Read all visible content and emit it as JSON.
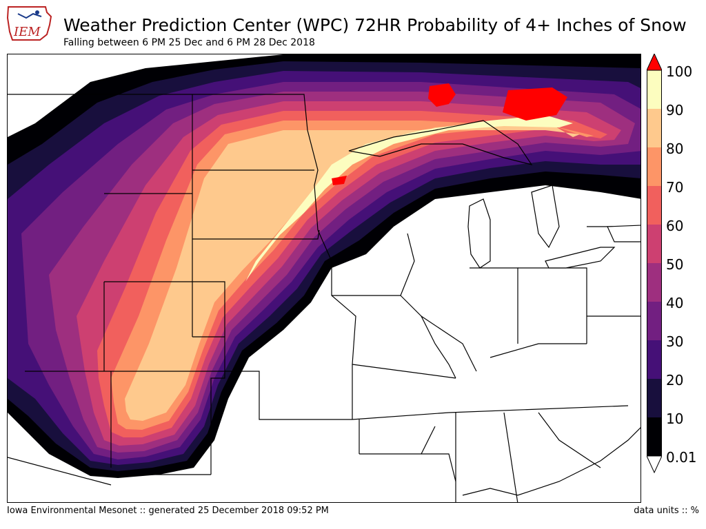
{
  "header": {
    "logo_text": "IEM",
    "title": "Weather Prediction Center (WPC) 72HR Probability of 4+ Inches of Snow",
    "subtitle": "Falling between 6 PM 25 Dec and 6 PM 28 Dec 2018"
  },
  "colorbar": {
    "levels": [
      "100",
      "90",
      "80",
      "70",
      "60",
      "50",
      "40",
      "30",
      "20",
      "10",
      "0.01"
    ],
    "colors": [
      "#fcfdbf",
      "#fec98d",
      "#fd9567",
      "#f1605d",
      "#cd4071",
      "#9e2f7f",
      "#721f81",
      "#451077",
      "#180f3d",
      "#000004"
    ],
    "over_color": "#ff0000",
    "under_color": "#ffffff"
  },
  "footer": {
    "source": "Iowa Environmental Mesonet :: generated 25 December 2018 09:52 PM",
    "units": "data units :: %"
  }
}
